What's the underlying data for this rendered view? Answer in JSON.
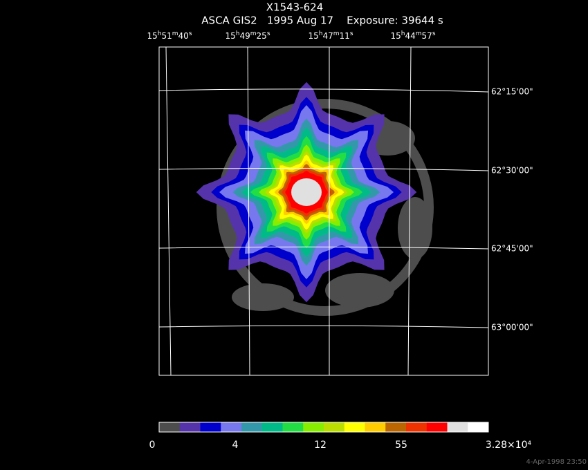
{
  "header": {
    "title": "X1543-624",
    "subtitle": "ASCA GIS2   1995 Aug 17    Exposure: 39644 s"
  },
  "ra_labels": [
    "15h51m40s",
    "15h49m25s",
    "15h47m11s",
    "15h44m57s"
  ],
  "dec_labels": [
    "62°15'00\"",
    "62°30'00\"",
    "62°45'00\"",
    "63°00'00\""
  ],
  "colorbar": {
    "colors": [
      "#4d4d4d",
      "#5533aa",
      "#0000cc",
      "#7777ee",
      "#3399aa",
      "#00bb88",
      "#22dd44",
      "#88ee00",
      "#bbdd00",
      "#ffff00",
      "#ffcc00",
      "#bb6600",
      "#ee3300",
      "#ff0000",
      "#e0e0e0",
      "#ffffff"
    ],
    "labels": [
      "0",
      "4",
      "12",
      "55",
      "3.28×10⁴"
    ]
  },
  "timestamp": "4-Apr-1998 23:50"
}
